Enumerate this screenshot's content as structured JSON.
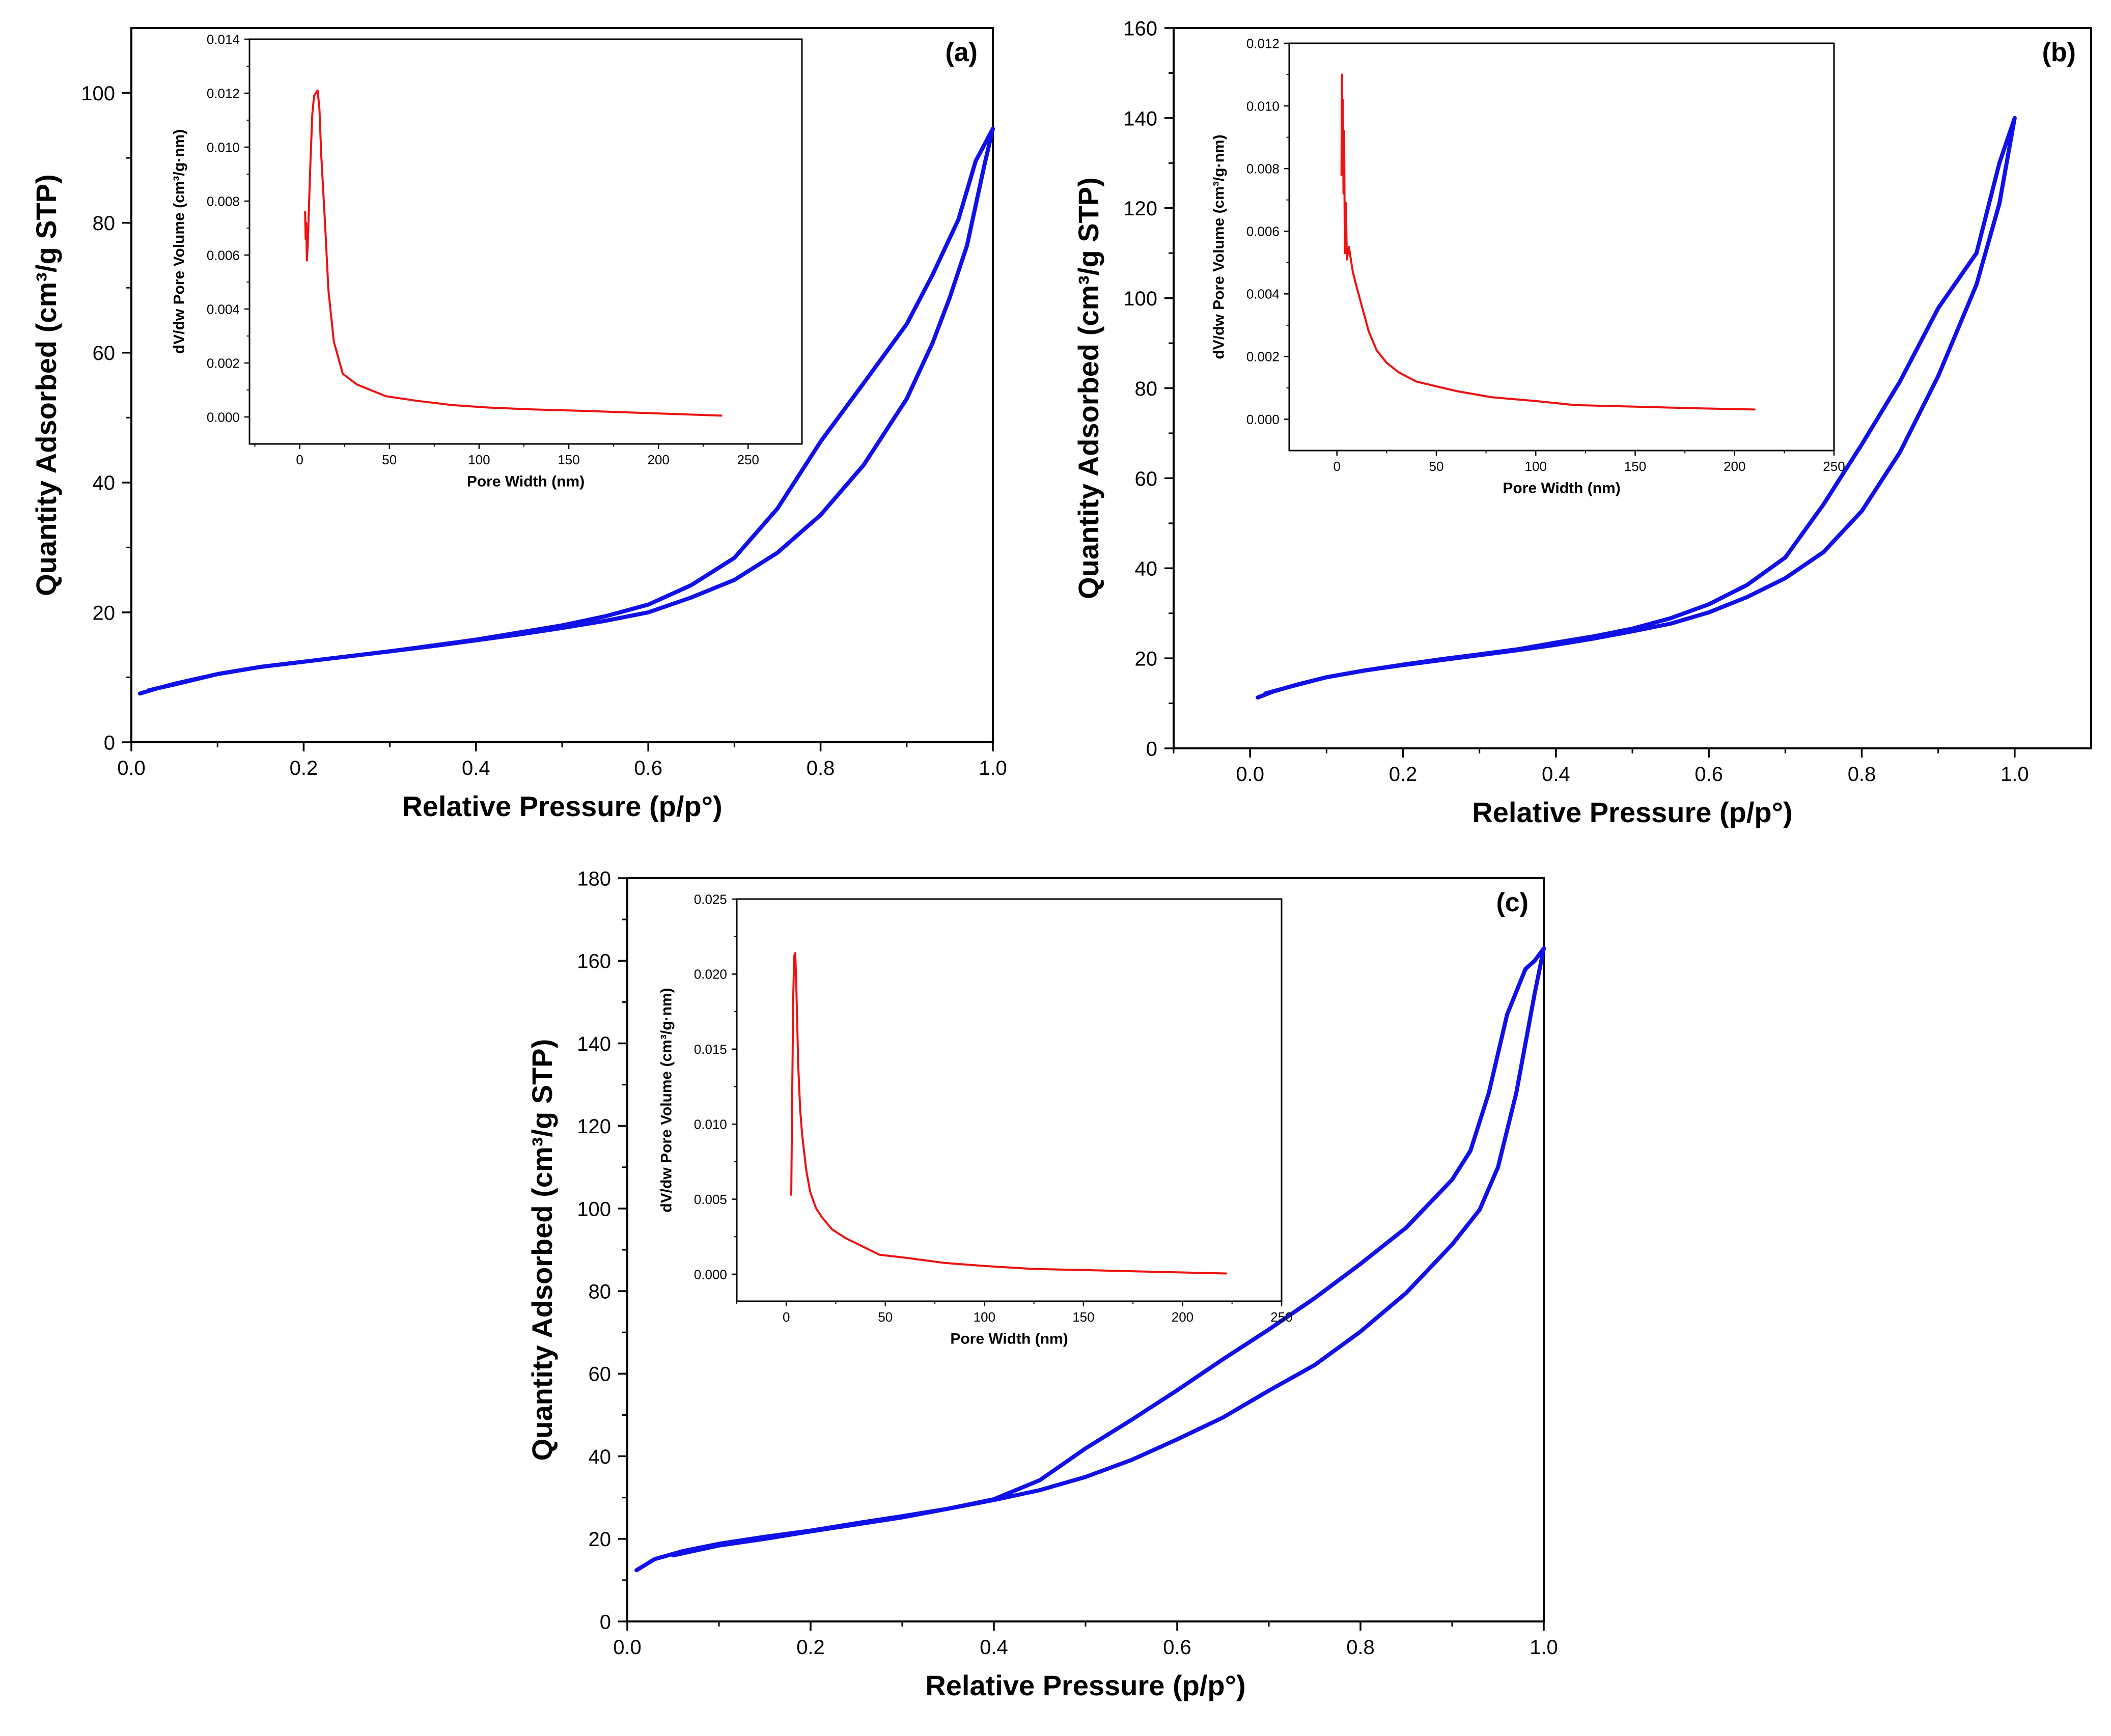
{
  "colors": {
    "isotherm": "#1010e8",
    "psd": "#ee1111",
    "axis": "#000000"
  },
  "chart_data": [
    {
      "type": "line",
      "panel_label": "(a)",
      "xlabel": "Relative Pressure (p/p°)",
      "ylabel": "Quantity Adsorbed (cm³/g STP)",
      "xlim": [
        0.0,
        1.0
      ],
      "ylim": [
        0,
        110
      ],
      "xticks": [
        "0.0",
        "0.2",
        "0.4",
        "0.6",
        "0.8",
        "1.0"
      ],
      "yticks": [
        "0",
        "20",
        "40",
        "60",
        "80",
        "100"
      ],
      "series": [
        {
          "name": "adsorption",
          "x": [
            0.01,
            0.03,
            0.05,
            0.08,
            0.1,
            0.15,
            0.2,
            0.25,
            0.3,
            0.35,
            0.4,
            0.45,
            0.5,
            0.55,
            0.6,
            0.65,
            0.7,
            0.75,
            0.8,
            0.85,
            0.9,
            0.93,
            0.95,
            0.97,
            0.99,
            1.0
          ],
          "y": [
            7.5,
            8.3,
            9.0,
            9.9,
            10.5,
            11.6,
            12.4,
            13.2,
            14.0,
            14.8,
            15.7,
            16.6,
            17.6,
            18.7,
            20.0,
            22.3,
            25.0,
            29.2,
            35.0,
            42.7,
            52.9,
            61.5,
            68.5,
            76.5,
            88.8,
            94.5
          ]
        },
        {
          "name": "desorption",
          "x": [
            1.0,
            0.98,
            0.96,
            0.93,
            0.9,
            0.85,
            0.8,
            0.75,
            0.7,
            0.65,
            0.6,
            0.55,
            0.5,
            0.45,
            0.4,
            0.35,
            0.3,
            0.25,
            0.2,
            0.15,
            0.1,
            0.05,
            0.02
          ],
          "y": [
            94.5,
            89.5,
            80.5,
            72.0,
            64.4,
            55.3,
            46.3,
            36.0,
            28.4,
            24.2,
            21.2,
            19.4,
            18.0,
            16.9,
            15.8,
            14.9,
            14.0,
            13.2,
            12.4,
            11.6,
            10.5,
            8.9,
            8.0
          ]
        }
      ],
      "inset": {
        "xlabel": "Pore Width (nm)",
        "ylabel": "dV/dw Pore Volume (cm³/g·nm)",
        "xlim": [
          -28,
          280
        ],
        "ylim": [
          -0.001,
          0.014
        ],
        "xticks": [
          "0",
          "50",
          "100",
          "150",
          "200",
          "250"
        ],
        "yticks": [
          "0.000",
          "0.002",
          "0.004",
          "0.006",
          "0.008",
          "0.010",
          "0.012",
          "0.014"
        ],
        "series": [
          {
            "name": "pore size distribution",
            "x": [
              3,
              3.3,
              3.6,
              4.0,
              4.5,
              5.0,
              6.0,
              7.0,
              8.0,
              9.0,
              10.0,
              11.0,
              12.0,
              14.0,
              16.0,
              19.0,
              24.0,
              32.0,
              48.0,
              65.0,
              85.0,
              105.0,
              130.0,
              160.0,
              200.0,
              235.0
            ],
            "y": [
              0.0076,
              0.0066,
              0.0072,
              0.0058,
              0.0064,
              0.0075,
              0.0095,
              0.0112,
              0.0119,
              0.012,
              0.0121,
              0.0114,
              0.0097,
              0.0073,
              0.0047,
              0.0028,
              0.0016,
              0.0012,
              0.00077,
              0.0006,
              0.00044,
              0.00035,
              0.00028,
              0.00022,
              0.00013,
              5e-05
            ]
          }
        ]
      }
    },
    {
      "type": "line",
      "panel_label": "(b)",
      "xlabel": "Relative Pressure (p/p°)",
      "ylabel": "Quantity Adsorbed (cm³/g STP)",
      "xlim": [
        -0.1,
        1.1
      ],
      "ylim": [
        0,
        160
      ],
      "xticks": [
        "0.0",
        "0.2",
        "0.4",
        "0.6",
        "0.8",
        "1.0"
      ],
      "yticks": [
        "0",
        "20",
        "40",
        "60",
        "80",
        "100",
        "120",
        "140",
        "160"
      ],
      "series": [
        {
          "name": "adsorption",
          "x": [
            0.01,
            0.03,
            0.06,
            0.1,
            0.15,
            0.2,
            0.25,
            0.3,
            0.35,
            0.4,
            0.45,
            0.5,
            0.55,
            0.6,
            0.65,
            0.7,
            0.75,
            0.8,
            0.85,
            0.9,
            0.95,
            0.98,
            1.0
          ],
          "y": [
            11.3,
            12.6,
            14.1,
            15.8,
            17.3,
            18.5,
            19.6,
            20.7,
            21.8,
            23.0,
            24.4,
            26.0,
            27.7,
            30.2,
            33.6,
            37.8,
            43.6,
            52.7,
            65.8,
            82.7,
            103.0,
            121.0,
            140.0
          ]
        },
        {
          "name": "desorption",
          "x": [
            1.0,
            0.98,
            0.95,
            0.9,
            0.85,
            0.8,
            0.75,
            0.7,
            0.65,
            0.6,
            0.55,
            0.5,
            0.45,
            0.4,
            0.35,
            0.3,
            0.25,
            0.2,
            0.15,
            0.1,
            0.05,
            0.02
          ],
          "y": [
            140.0,
            130.0,
            110.0,
            97.8,
            81.5,
            67.5,
            54.2,
            42.4,
            36.3,
            32.0,
            28.9,
            26.6,
            24.9,
            23.5,
            22.0,
            20.9,
            19.8,
            18.6,
            17.3,
            15.8,
            13.6,
            12.2
          ]
        }
      ],
      "inset": {
        "xlabel": "Pore Width (nm)",
        "ylabel": "dV/dw Pore Volume (cm³/g·nm)",
        "xlim": [
          -24,
          250
        ],
        "ylim": [
          -0.001,
          0.012
        ],
        "xticks": [
          "0",
          "50",
          "100",
          "150",
          "200",
          "250"
        ],
        "yticks": [
          "0.000",
          "0.002",
          "0.004",
          "0.006",
          "0.008",
          "0.010",
          "0.012"
        ],
        "series": [
          {
            "name": "pore size distribution",
            "x": [
              2.3,
              2.5,
              2.7,
              3.0,
              3.3,
              3.6,
              4.0,
              4.5,
              5.0,
              6.0,
              8.0,
              10.0,
              13.0,
              16.0,
              20.0,
              25.0,
              31.0,
              40.0,
              48.0,
              60.0,
              78.0,
              100.0,
              120.0,
              150.0,
              180.0,
              210.0
            ],
            "y": [
              0.0078,
              0.011,
              0.0085,
              0.0102,
              0.0072,
              0.0092,
              0.0053,
              0.0069,
              0.0051,
              0.0055,
              0.0047,
              0.0042,
              0.0035,
              0.0028,
              0.0022,
              0.0018,
              0.0015,
              0.0012,
              0.00108,
              0.0009,
              0.0007,
              0.00058,
              0.00045,
              0.0004,
              0.00035,
              0.00031
            ]
          }
        ]
      }
    },
    {
      "type": "line",
      "panel_label": "(c)",
      "xlabel": "Relative Pressure (p/p°)",
      "ylabel": "Quantity Adsorbed (cm³/g STP)",
      "xlim": [
        0.0,
        1.0
      ],
      "ylim": [
        0,
        180
      ],
      "xticks": [
        "0.0",
        "0.2",
        "0.4",
        "0.6",
        "0.8",
        "1.0"
      ],
      "yticks": [
        "0",
        "20",
        "40",
        "60",
        "80",
        "100",
        "120",
        "140",
        "160",
        "180"
      ],
      "series": [
        {
          "name": "adsorption",
          "x": [
            0.01,
            0.03,
            0.06,
            0.1,
            0.15,
            0.2,
            0.25,
            0.3,
            0.35,
            0.4,
            0.45,
            0.5,
            0.55,
            0.6,
            0.65,
            0.7,
            0.75,
            0.8,
            0.85,
            0.9,
            0.93,
            0.95,
            0.97,
            0.99,
            1.0
          ],
          "y": [
            12.4,
            15.1,
            17.0,
            18.8,
            20.5,
            22.0,
            23.8,
            25.5,
            27.3,
            29.4,
            31.8,
            35.0,
            39.1,
            44.1,
            49.4,
            55.9,
            62.1,
            70.2,
            79.6,
            91.3,
            99.7,
            110.0,
            128.0,
            152.0,
            163.0
          ]
        },
        {
          "name": "desorption",
          "x": [
            1.0,
            0.99,
            0.98,
            0.96,
            0.94,
            0.92,
            0.9,
            0.85,
            0.8,
            0.75,
            0.7,
            0.65,
            0.6,
            0.55,
            0.5,
            0.45,
            0.4,
            0.35,
            0.3,
            0.25,
            0.2,
            0.15,
            0.1,
            0.05
          ],
          "y": [
            163.0,
            160.0,
            158.0,
            147.0,
            128.0,
            114.0,
            107.0,
            95.4,
            86.6,
            78.3,
            70.7,
            63.5,
            56.0,
            48.8,
            41.9,
            34.2,
            29.6,
            27.3,
            25.2,
            23.5,
            21.8,
            20.0,
            18.4,
            16.0
          ]
        }
      ],
      "inset": {
        "xlabel": "Pore Width (nm)",
        "ylabel": "dV/dw Pore Volume (cm³/g·nm)",
        "xlim": [
          -25,
          250
        ],
        "ylim": [
          -0.0018,
          0.025
        ],
        "xticks": [
          "0",
          "50",
          "100",
          "150",
          "200",
          "250"
        ],
        "yticks": [
          "0.000",
          "0.005",
          "0.010",
          "0.015",
          "0.020",
          "0.025"
        ],
        "series": [
          {
            "name": "pore size distribution",
            "x": [
              2.5,
              3.0,
              3.5,
              4.0,
              4.5,
              5.0,
              5.5,
              6.0,
              7.0,
              8.0,
              10.0,
              12.0,
              15.0,
              18.0,
              23.0,
              30.0,
              47.0,
              60.0,
              80.0,
              100.0,
              125.0,
              150.0,
              180.0,
              222.0
            ],
            "y": [
              0.0053,
              0.012,
              0.0185,
              0.0212,
              0.0214,
              0.0195,
              0.0168,
              0.014,
              0.011,
              0.0093,
              0.007,
              0.0055,
              0.0044,
              0.0038,
              0.003,
              0.0024,
              0.0013,
              0.0011,
              0.00075,
              0.00055,
              0.00035,
              0.00028,
              0.00018,
              5e-05
            ]
          }
        ]
      }
    }
  ]
}
